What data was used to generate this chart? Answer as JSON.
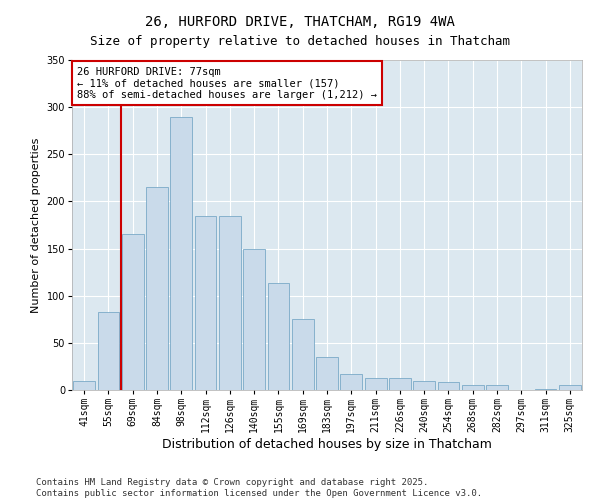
{
  "title": "26, HURFORD DRIVE, THATCHAM, RG19 4WA",
  "subtitle": "Size of property relative to detached houses in Thatcham",
  "xlabel": "Distribution of detached houses by size in Thatcham",
  "ylabel": "Number of detached properties",
  "categories": [
    "41sqm",
    "55sqm",
    "69sqm",
    "84sqm",
    "98sqm",
    "112sqm",
    "126sqm",
    "140sqm",
    "155sqm",
    "169sqm",
    "183sqm",
    "197sqm",
    "211sqm",
    "226sqm",
    "240sqm",
    "254sqm",
    "268sqm",
    "282sqm",
    "297sqm",
    "311sqm",
    "325sqm"
  ],
  "values": [
    10,
    83,
    165,
    215,
    290,
    185,
    185,
    150,
    113,
    75,
    35,
    17,
    13,
    13,
    10,
    8,
    5,
    5,
    0,
    1,
    5
  ],
  "bar_color": "#c9daea",
  "bar_edge_color": "#7aaac8",
  "vline_x": 1.5,
  "vline_color": "#cc0000",
  "annotation_text": "26 HURFORD DRIVE: 77sqm\n← 11% of detached houses are smaller (157)\n88% of semi-detached houses are larger (1,212) →",
  "annotation_box_facecolor": "#ffffff",
  "annotation_box_edge": "#cc0000",
  "ylim": [
    0,
    350
  ],
  "yticks": [
    0,
    50,
    100,
    150,
    200,
    250,
    300,
    350
  ],
  "figure_facecolor": "#ffffff",
  "plot_facecolor": "#dce8f0",
  "grid_color": "#ffffff",
  "footnote": "Contains HM Land Registry data © Crown copyright and database right 2025.\nContains public sector information licensed under the Open Government Licence v3.0.",
  "title_fontsize": 10,
  "xlabel_fontsize": 9,
  "ylabel_fontsize": 8,
  "tick_fontsize": 7,
  "annot_fontsize": 7.5,
  "footnote_fontsize": 6.5
}
